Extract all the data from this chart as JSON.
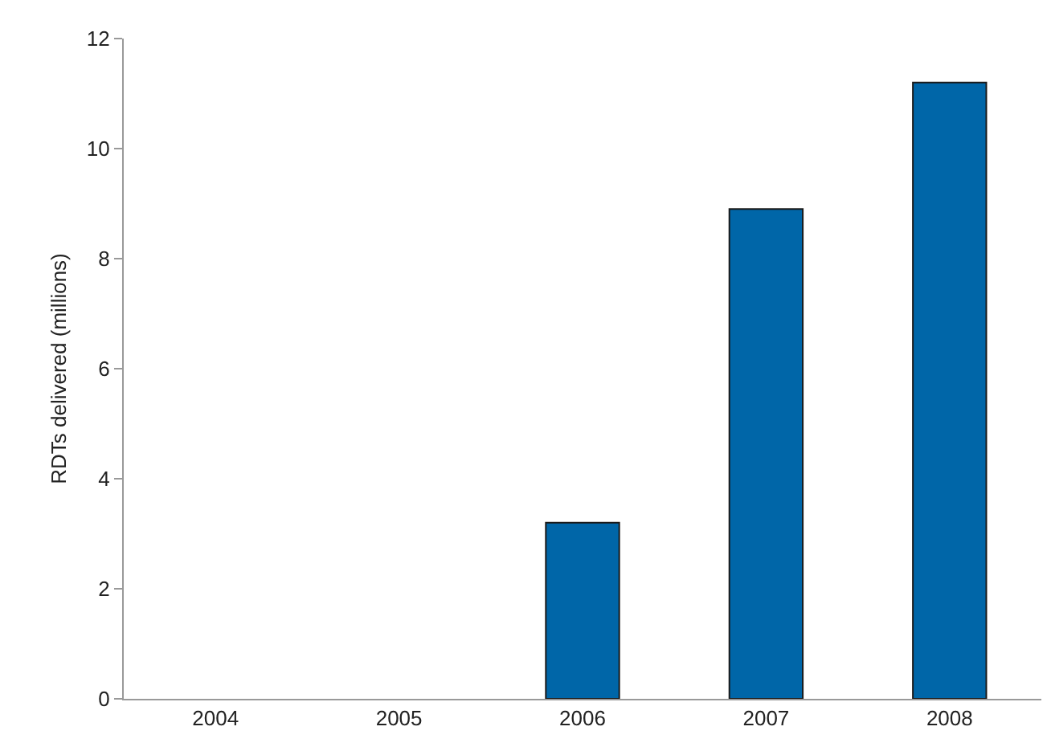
{
  "chart_data": {
    "type": "bar",
    "ylabel": "RDTs delivered (millions)",
    "categories": [
      "2004",
      "2005",
      "2006",
      "2007",
      "2008"
    ],
    "values": [
      0,
      0,
      3.2,
      8.9,
      11.2
    ],
    "color": "#0066a8",
    "ylim": [
      0,
      12
    ],
    "yticks": [
      0,
      2,
      4,
      6,
      8,
      10,
      12
    ],
    "grid": false
  }
}
